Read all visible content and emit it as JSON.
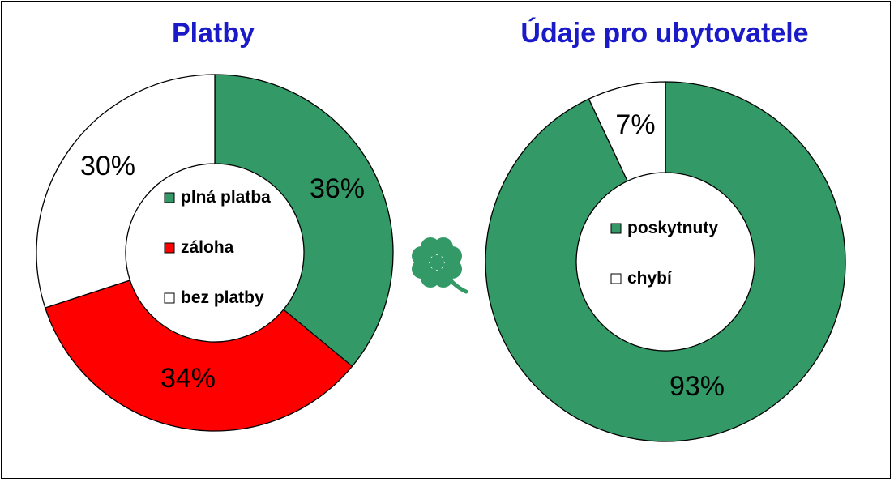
{
  "chart_data": [
    {
      "type": "pie",
      "title": "Platby",
      "categories": [
        "plná platba",
        "záloha",
        "bez platby"
      ],
      "values": [
        36,
        34,
        30
      ],
      "labels": [
        "36%",
        "34%",
        "30%"
      ],
      "colors": [
        "#339966",
        "#ff0000",
        "#ffffff"
      ],
      "legend": "center"
    },
    {
      "type": "pie",
      "title": "Údaje pro ubytovatele",
      "categories": [
        "poskytnuty",
        "chybí"
      ],
      "values": [
        93,
        7
      ],
      "labels": [
        "93%",
        "7%"
      ],
      "colors": [
        "#339966",
        "#ffffff"
      ],
      "legend": "center"
    }
  ],
  "decoration": {
    "icon": "four-leaf-clover-icon",
    "color": "#339966"
  }
}
